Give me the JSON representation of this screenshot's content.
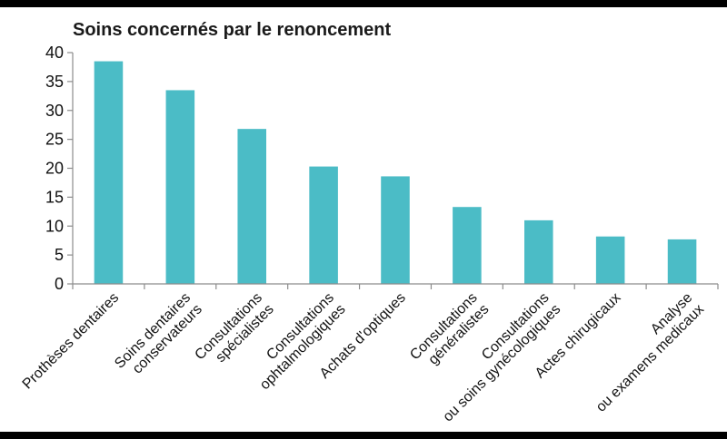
{
  "chart_data": {
    "type": "bar",
    "title": "Soins concernés par le renoncement",
    "categories": [
      [
        "Prothèses dentaires"
      ],
      [
        "Soins dentaires",
        "conservateurs"
      ],
      [
        "Consultations",
        "spécialistes"
      ],
      [
        "Consultations",
        "ophtalmologiques"
      ],
      [
        "Achats d'optiques"
      ],
      [
        "Consultations",
        "généralistes"
      ],
      [
        "Consultations",
        "ou soins gynécologiques"
      ],
      [
        "Actes chirugicaux"
      ],
      [
        "Analyse",
        "ou examens medicaux"
      ]
    ],
    "values": [
      38.5,
      33.5,
      26.8,
      20.3,
      18.6,
      13.3,
      11.0,
      8.2,
      7.7
    ],
    "ylim": [
      0,
      40
    ],
    "yticks": [
      "0",
      "5",
      "10",
      "15",
      "20",
      "25",
      "30",
      "35",
      "40"
    ],
    "xlabel": "",
    "ylabel": "",
    "grid": false,
    "bar_color": "#4bbcc6",
    "axis_color": "#8c8c8c"
  }
}
